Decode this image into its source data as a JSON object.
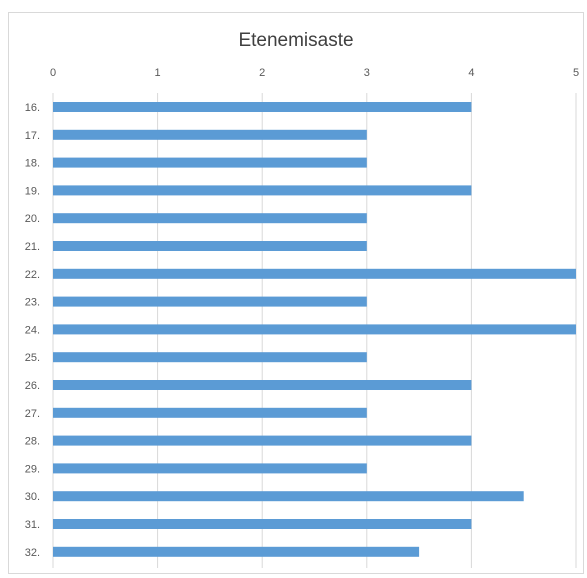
{
  "chart_data": {
    "type": "bar",
    "orientation": "horizontal",
    "title": "Etenemisaste",
    "xlabel": "",
    "ylabel": "",
    "categories": [
      "16.",
      "17.",
      "18.",
      "19.",
      "20.",
      "21.",
      "22.",
      "23.",
      "24.",
      "25.",
      "26.",
      "27.",
      "28.",
      "29.",
      "30.",
      "31.",
      "32."
    ],
    "values": [
      4,
      3,
      3,
      4,
      3,
      3,
      5,
      3,
      5,
      3,
      4,
      3,
      4,
      3,
      4.5,
      4,
      3.5
    ],
    "xlim": [
      0,
      5
    ],
    "x_ticks": [
      "0",
      "1",
      "2",
      "3",
      "4",
      "5"
    ],
    "x_axis_position": "top",
    "grid": true,
    "legend": "none",
    "bar_color": "#5b9bd5",
    "grid_color": "#d9d9d9"
  }
}
